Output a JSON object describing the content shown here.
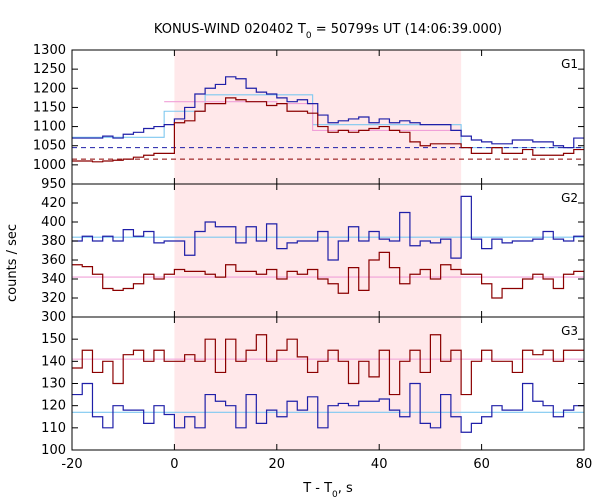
{
  "chart_data": {
    "type": "line",
    "title": "KONUS-WIND 020402 T",
    "title_sub": "0",
    "title_rest": " = 50799s UT (14:06:39.000)",
    "xlabel": "T - T",
    "xlabel_sub": "0",
    "xlabel_rest": ", s",
    "ylabel": "counts / sec",
    "x_ticks": [
      "-20",
      "0",
      "20",
      "40",
      "60",
      "80"
    ],
    "xlim": [
      -20,
      80
    ],
    "shaded_interval": [
      0,
      56
    ],
    "colors": {
      "shade": "#ffe8ea",
      "blue": "#1f1fa8",
      "red": "#8b0000",
      "cyan": "#7fc8f0",
      "pink": "#f0a0d8"
    },
    "panels": [
      {
        "label": "G1",
        "ylim": [
          950,
          1300
        ],
        "y_ticks": [
          "950",
          "1000",
          "1050",
          "1100",
          "1150",
          "1200",
          "1250",
          "1300"
        ],
        "edges": [
          -20,
          -18,
          -16,
          -14,
          -12,
          -10,
          -8,
          -6,
          -4,
          -2,
          0,
          2,
          4,
          6,
          8,
          10,
          12,
          14,
          16,
          18,
          20,
          22,
          24,
          26,
          28,
          30,
          32,
          34,
          36,
          38,
          40,
          42,
          44,
          46,
          48,
          50,
          52,
          54,
          56,
          58,
          60,
          62,
          64,
          66,
          68,
          70,
          72,
          74,
          76,
          78,
          80
        ],
        "series": [
          {
            "name": "blue",
            "values": [
              1070,
              1070,
              1070,
              1075,
              1070,
              1080,
              1085,
              1095,
              1100,
              1105,
              1120,
              1150,
              1185,
              1200,
              1210,
              1230,
              1225,
              1200,
              1190,
              1185,
              1175,
              1165,
              1170,
              1160,
              1130,
              1110,
              1115,
              1120,
              1125,
              1110,
              1120,
              1110,
              1115,
              1110,
              1105,
              1105,
              1105,
              1090,
              1075,
              1065,
              1060,
              1055,
              1055,
              1065,
              1065,
              1060,
              1060,
              1050,
              1045,
              1070
            ]
          },
          {
            "name": "red",
            "values": [
              1010,
              1010,
              1008,
              1010,
              1012,
              1015,
              1020,
              1025,
              1030,
              1030,
              1110,
              1115,
              1140,
              1160,
              1160,
              1175,
              1170,
              1165,
              1165,
              1155,
              1160,
              1140,
              1140,
              1135,
              1100,
              1085,
              1090,
              1085,
              1090,
              1095,
              1100,
              1090,
              1085,
              1060,
              1050,
              1055,
              1055,
              1055,
              1045,
              1030,
              1030,
              1045,
              1030,
              1030,
              1040,
              1025,
              1025,
              1025,
              1030,
              1040
            ]
          }
        ],
        "fits": [
          {
            "color": "cyan",
            "style": "solid",
            "steps": [
              [
                -20,
                -2,
                1072
              ],
              [
                -2,
                6,
                1140
              ],
              [
                6,
                27,
                1183
              ],
              [
                27,
                56,
                1105
              ],
              [
                56,
                80,
                1045
              ]
            ]
          },
          {
            "color": "pink",
            "style": "solid",
            "steps": [
              [
                -2,
                20,
                1165
              ],
              [
                20,
                27,
                1160
              ],
              [
                27,
                56,
                1090
              ]
            ]
          },
          {
            "color": "blue",
            "style": "dashed",
            "steps": [
              [
                -20,
                80,
                1045
              ]
            ]
          },
          {
            "color": "red",
            "style": "dashed",
            "steps": [
              [
                -20,
                80,
                1015
              ]
            ]
          }
        ]
      },
      {
        "label": "G2",
        "ylim": [
          300,
          440
        ],
        "y_ticks": [
          "300",
          "320",
          "340",
          "360",
          "380",
          "400",
          "420"
        ],
        "edges": [
          -20,
          -18,
          -16,
          -14,
          -12,
          -10,
          -8,
          -6,
          -4,
          -2,
          0,
          2,
          4,
          6,
          8,
          10,
          12,
          14,
          16,
          18,
          20,
          22,
          24,
          26,
          28,
          30,
          32,
          34,
          36,
          38,
          40,
          42,
          44,
          46,
          48,
          50,
          52,
          54,
          56,
          58,
          60,
          62,
          64,
          66,
          68,
          70,
          72,
          74,
          76,
          78,
          80
        ],
        "series": [
          {
            "name": "blue",
            "values": [
              380,
              385,
              380,
              385,
              380,
              392,
              385,
              390,
              378,
              380,
              380,
              365,
              390,
              400,
              395,
              395,
              378,
              395,
              380,
              398,
              372,
              378,
              380,
              380,
              390,
              360,
              380,
              395,
              380,
              390,
              382,
              380,
              410,
              375,
              380,
              378,
              382,
              362,
              427,
              382,
              372,
              382,
              378,
              380,
              380,
              382,
              390,
              382,
              380,
              385
            ]
          },
          {
            "name": "red",
            "values": [
              355,
              353,
              345,
              330,
              328,
              330,
              335,
              345,
              340,
              345,
              350,
              348,
              348,
              345,
              342,
              355,
              348,
              348,
              345,
              350,
              340,
              348,
              345,
              350,
              340,
              335,
              325,
              352,
              328,
              360,
              368,
              352,
              335,
              345,
              350,
              340,
              355,
              350,
              345,
              345,
              335,
              320,
              330,
              330,
              340,
              345,
              340,
              330,
              345,
              348
            ]
          }
        ],
        "fits": [
          {
            "color": "cyan",
            "style": "solid",
            "steps": [
              [
                -20,
                80,
                384
              ]
            ]
          },
          {
            "color": "pink",
            "style": "solid",
            "steps": [
              [
                -20,
                80,
                342
              ]
            ]
          }
        ]
      },
      {
        "label": "G3",
        "ylim": [
          100,
          160
        ],
        "y_ticks": [
          "100",
          "110",
          "120",
          "130",
          "140",
          "150"
        ],
        "edges": [
          -20,
          -18,
          -16,
          -14,
          -12,
          -10,
          -8,
          -6,
          -4,
          -2,
          0,
          2,
          4,
          6,
          8,
          10,
          12,
          14,
          16,
          18,
          20,
          22,
          24,
          26,
          28,
          30,
          32,
          34,
          36,
          38,
          40,
          42,
          44,
          46,
          48,
          50,
          52,
          54,
          56,
          58,
          60,
          62,
          64,
          66,
          68,
          70,
          72,
          74,
          76,
          78,
          80
        ],
        "series": [
          {
            "name": "blue",
            "values": [
              125,
              130,
              115,
              110,
              120,
              118,
              118,
              112,
              120,
              116,
              110,
              115,
              110,
              125,
              122,
              120,
              110,
              125,
              112,
              118,
              115,
              122,
              118,
              124,
              110,
              120,
              121,
              120,
              122,
              122,
              123,
              118,
              115,
              130,
              112,
              110,
              125,
              115,
              108,
              112,
              115,
              120,
              118,
              118,
              130,
              122,
              120,
              115,
              118,
              120
            ]
          },
          {
            "name": "red",
            "values": [
              137,
              145,
              135,
              140,
              130,
              143,
              145,
              140,
              145,
              140,
              140,
              143,
              140,
              150,
              135,
              150,
              140,
              145,
              152,
              140,
              145,
              150,
              142,
              135,
              140,
              145,
              140,
              130,
              140,
              133,
              145,
              125,
              140,
              145,
              135,
              152,
              140,
              145,
              125,
              140,
              145,
              140,
              140,
              135,
              145,
              143,
              145,
              140,
              145,
              145
            ]
          }
        ],
        "fits": [
          {
            "color": "cyan",
            "style": "solid",
            "steps": [
              [
                -20,
                80,
                117
              ]
            ]
          },
          {
            "color": "pink",
            "style": "solid",
            "steps": [
              [
                -20,
                80,
                141
              ]
            ]
          }
        ]
      }
    ]
  }
}
